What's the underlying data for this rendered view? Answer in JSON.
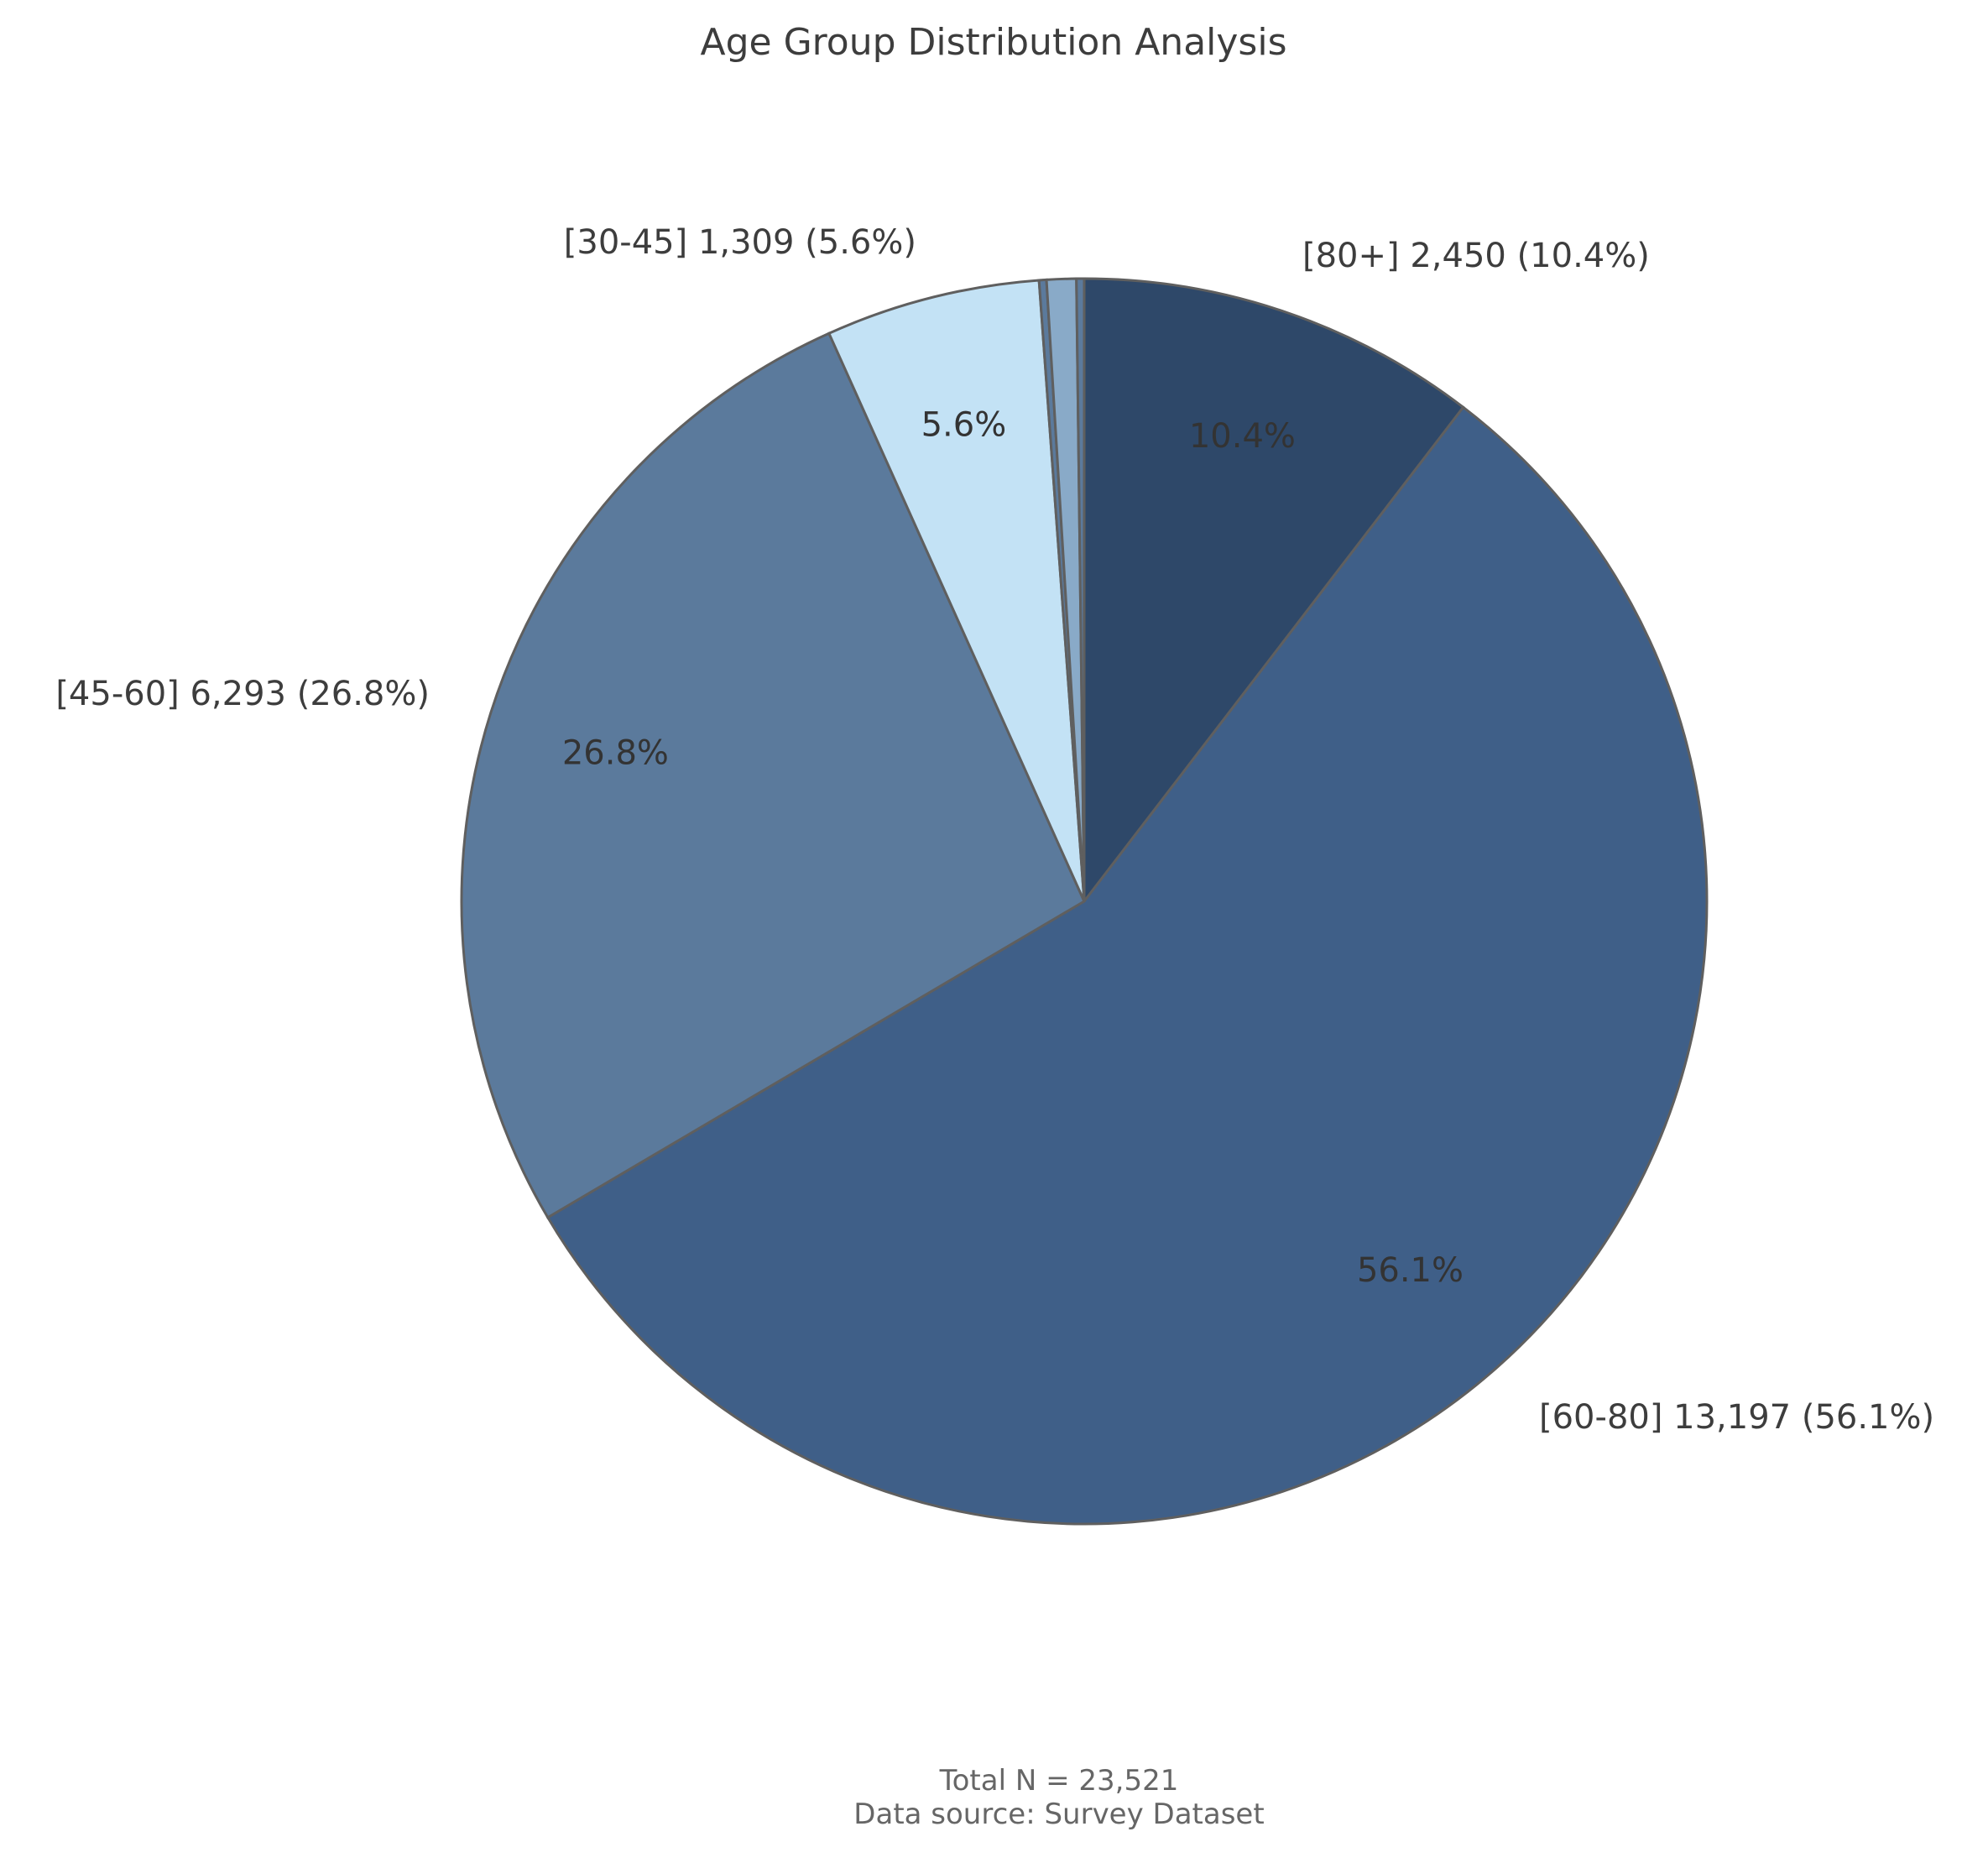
{
  "chart_data": {
    "type": "pie",
    "title": "Age Group Distribution Analysis",
    "total": 23521,
    "slices": [
      {
        "name": "[80+]",
        "value": 2450,
        "percent": 10.4,
        "color": "#2e4869",
        "label": "[80+] 2,450 (10.4%)",
        "pct_label": "10.4%"
      },
      {
        "name": "[60-80]",
        "value": 13197,
        "percent": 56.1,
        "color": "#3f5f88",
        "label": "[60-80] 13,197 (56.1%)",
        "pct_label": "56.1%"
      },
      {
        "name": "[45-60]",
        "value": 6293,
        "percent": 26.8,
        "color": "#5b7a9c",
        "label": "[45-60] 6,293 (26.8%)",
        "pct_label": "26.8%"
      },
      {
        "name": "[30-45]",
        "value": 1309,
        "percent": 5.6,
        "color": "#c3e2f5",
        "label": "[30-45] 1,309 (5.6%)",
        "pct_label": "5.6%"
      },
      {
        "name": "small-1",
        "value": 45,
        "percent": 0.2,
        "color": "#5b7a9c",
        "label": "",
        "pct_label": ""
      },
      {
        "name": "small-2",
        "value": 180,
        "percent": 0.8,
        "color": "#89aac8",
        "label": "",
        "pct_label": ""
      },
      {
        "name": "small-3",
        "value": 47,
        "percent": 0.2,
        "color": "#5b7a9c",
        "label": "",
        "pct_label": ""
      }
    ],
    "footer": {
      "line1": "Total N = 23,521",
      "line2": "Data source: Survey Dataset"
    }
  }
}
